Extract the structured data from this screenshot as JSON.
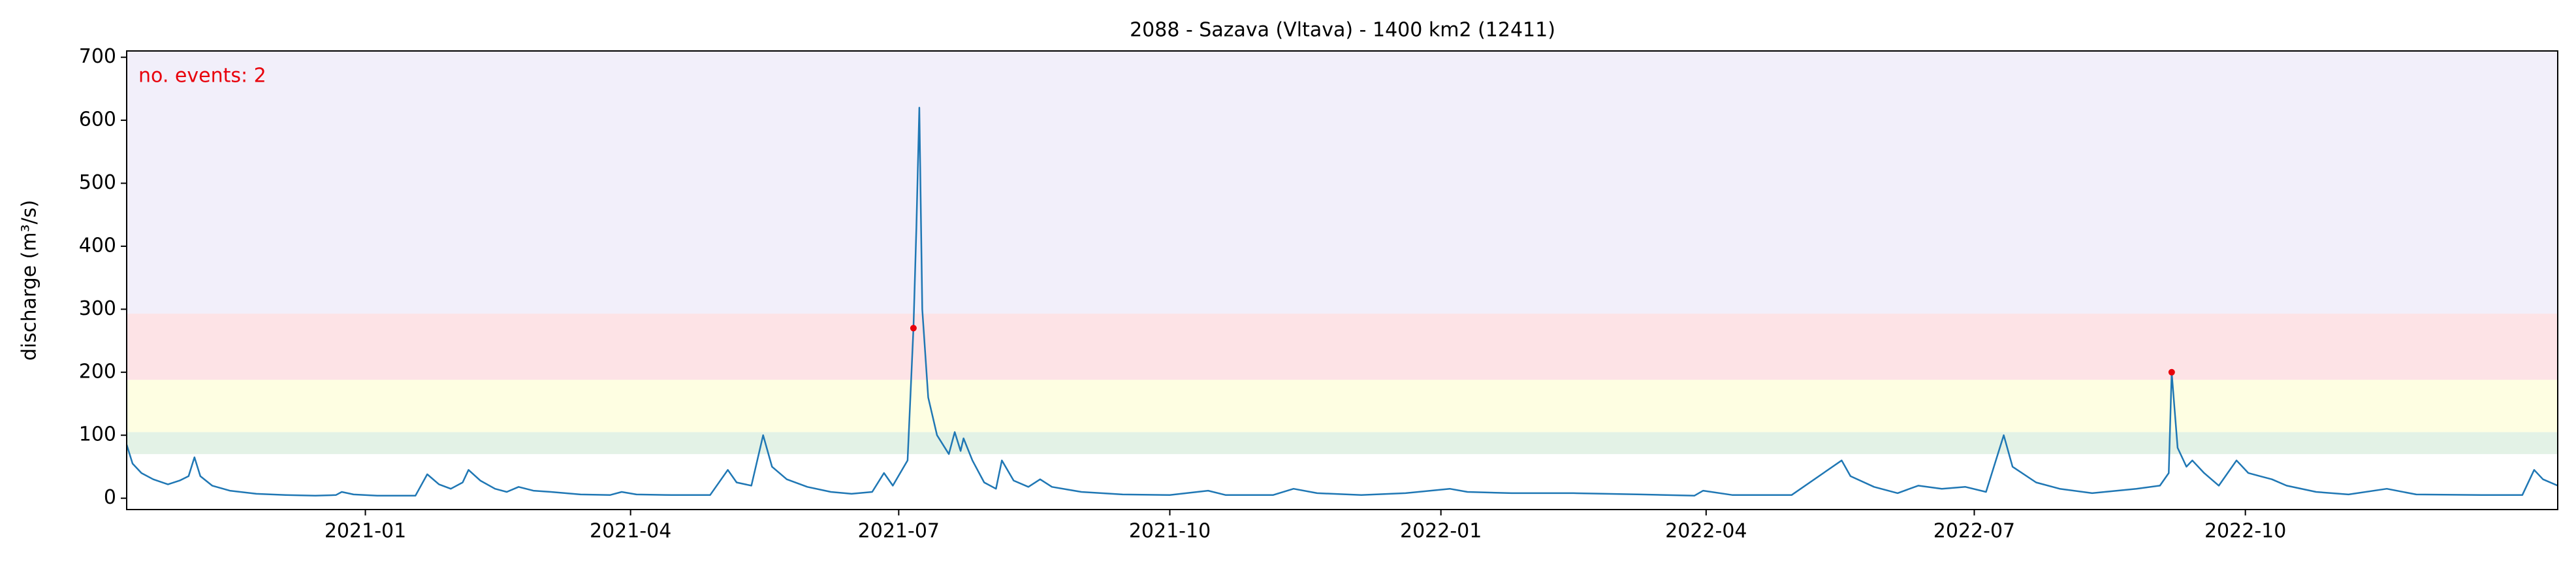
{
  "chart_data": {
    "type": "line",
    "title": "2088 - Sazava (Vltava) - 1400 km2 (12411)",
    "ylabel": "discharge (m³/s)",
    "annotation": "no. events: 2",
    "annotation_color": "#e8000b",
    "xlim": [
      "2020-10-12",
      "2023-01-15"
    ],
    "ylim": [
      -18,
      710
    ],
    "yticks": [
      0,
      100,
      200,
      300,
      400,
      500,
      600,
      700
    ],
    "xticks": [
      {
        "value": "2021-01-01",
        "label": "2021-01"
      },
      {
        "value": "2021-04-01",
        "label": "2021-04"
      },
      {
        "value": "2021-07-01",
        "label": "2021-07"
      },
      {
        "value": "2021-10-01",
        "label": "2021-10"
      },
      {
        "value": "2022-01-01",
        "label": "2022-01"
      },
      {
        "value": "2022-04-01",
        "label": "2022-04"
      },
      {
        "value": "2022-07-01",
        "label": "2022-07"
      },
      {
        "value": "2022-10-01",
        "label": "2022-10"
      }
    ],
    "bands": [
      {
        "from": 70,
        "to": 105,
        "color": "#e3f2e6"
      },
      {
        "from": 105,
        "to": 188,
        "color": "#fefee2"
      },
      {
        "from": 188,
        "to": 293,
        "color": "#fde3e6"
      },
      {
        "from": 293,
        "to": 710,
        "color": "#f2effa"
      }
    ],
    "series": [
      {
        "color": "#1f77b4",
        "x": [
          "2020-10-12",
          "2020-10-14",
          "2020-10-17",
          "2020-10-21",
          "2020-10-26",
          "2020-10-30",
          "2020-11-02",
          "2020-11-04",
          "2020-11-06",
          "2020-11-10",
          "2020-11-16",
          "2020-11-25",
          "2020-12-05",
          "2020-12-15",
          "2020-12-22",
          "2020-12-24",
          "2020-12-28",
          "2021-01-05",
          "2021-01-18",
          "2021-01-22",
          "2021-01-26",
          "2021-01-30",
          "2021-02-03",
          "2021-02-05",
          "2021-02-09",
          "2021-02-14",
          "2021-02-18",
          "2021-02-22",
          "2021-02-27",
          "2021-03-05",
          "2021-03-15",
          "2021-03-25",
          "2021-03-29",
          "2021-04-03",
          "2021-04-15",
          "2021-04-28",
          "2021-05-04",
          "2021-05-07",
          "2021-05-12",
          "2021-05-16",
          "2021-05-19",
          "2021-05-24",
          "2021-05-31",
          "2021-06-08",
          "2021-06-15",
          "2021-06-22",
          "2021-06-26",
          "2021-06-29",
          "2021-07-04",
          "2021-07-06",
          "2021-07-07",
          "2021-07-08",
          "2021-07-09",
          "2021-07-11",
          "2021-07-14",
          "2021-07-18",
          "2021-07-20",
          "2021-07-22",
          "2021-07-23",
          "2021-07-26",
          "2021-07-30",
          "2021-08-03",
          "2021-08-05",
          "2021-08-09",
          "2021-08-14",
          "2021-08-18",
          "2021-08-22",
          "2021-09-01",
          "2021-09-15",
          "2021-10-01",
          "2021-10-14",
          "2021-10-20",
          "2021-11-05",
          "2021-11-12",
          "2021-11-20",
          "2021-12-05",
          "2021-12-20",
          "2022-01-04",
          "2022-01-10",
          "2022-01-25",
          "2022-02-15",
          "2022-03-10",
          "2022-03-28",
          "2022-03-31",
          "2022-04-10",
          "2022-04-30",
          "2022-05-17",
          "2022-05-20",
          "2022-05-28",
          "2022-06-05",
          "2022-06-12",
          "2022-06-20",
          "2022-06-28",
          "2022-07-05",
          "2022-07-11",
          "2022-07-14",
          "2022-07-22",
          "2022-07-30",
          "2022-08-10",
          "2022-08-25",
          "2022-09-02",
          "2022-09-05",
          "2022-09-06",
          "2022-09-08",
          "2022-09-11",
          "2022-09-13",
          "2022-09-17",
          "2022-09-22",
          "2022-09-28",
          "2022-10-02",
          "2022-10-06",
          "2022-10-10",
          "2022-10-15",
          "2022-10-25",
          "2022-11-05",
          "2022-11-18",
          "2022-11-28",
          "2022-12-20",
          "2023-01-03",
          "2023-01-07",
          "2023-01-10",
          "2023-01-15"
        ],
        "values": [
          85,
          55,
          40,
          30,
          22,
          28,
          35,
          65,
          35,
          20,
          12,
          7,
          5,
          4,
          5,
          10,
          6,
          4,
          4,
          38,
          22,
          15,
          25,
          45,
          28,
          15,
          10,
          18,
          12,
          10,
          6,
          5,
          10,
          6,
          5,
          5,
          45,
          25,
          20,
          100,
          50,
          30,
          18,
          10,
          7,
          10,
          40,
          20,
          60,
          270,
          430,
          620,
          300,
          160,
          100,
          70,
          105,
          75,
          95,
          60,
          25,
          15,
          60,
          28,
          18,
          30,
          18,
          10,
          6,
          5,
          12,
          5,
          5,
          15,
          8,
          5,
          8,
          15,
          10,
          8,
          8,
          6,
          4,
          12,
          5,
          5,
          60,
          35,
          18,
          8,
          20,
          15,
          18,
          10,
          100,
          50,
          25,
          15,
          8,
          15,
          20,
          40,
          200,
          80,
          50,
          60,
          40,
          20,
          60,
          40,
          35,
          30,
          20,
          10,
          6,
          15,
          6,
          5,
          5,
          45,
          30,
          20
        ]
      }
    ],
    "events": {
      "color": "#e8000b",
      "x": [
        "2021-07-06",
        "2022-09-06"
      ],
      "values": [
        270,
        200
      ]
    }
  }
}
